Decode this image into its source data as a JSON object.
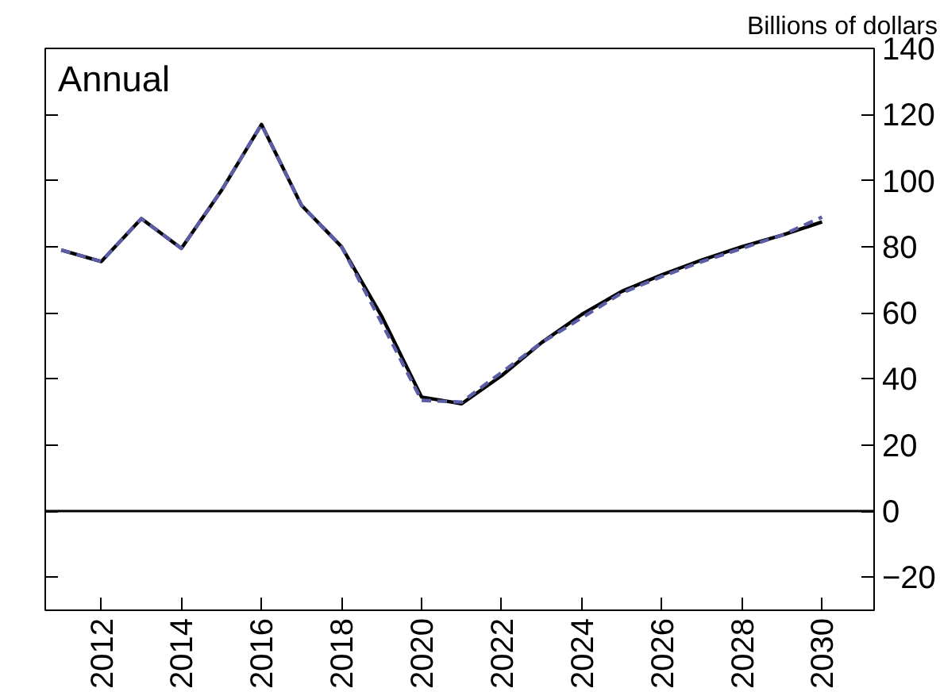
{
  "chart_data": {
    "type": "line",
    "ylabel": "Billions of dollars",
    "annotations": [
      "Annual"
    ],
    "x": [
      2011,
      2012,
      2013,
      2014,
      2015,
      2016,
      2017,
      2018,
      2019,
      2020,
      2021,
      2022,
      2023,
      2024,
      2025,
      2026,
      2027,
      2028,
      2029,
      2030
    ],
    "series": [
      {
        "color": "#000000",
        "line_style": "solid",
        "values": [
          79,
          75.5,
          88.5,
          79.5,
          97,
          117,
          92.5,
          80,
          59,
          34.5,
          32.5,
          41,
          51,
          59.5,
          66.5,
          71.5,
          76,
          80,
          83.5,
          87.5
        ]
      },
      {
        "color": "#5b5ea6",
        "line_style": "dashed",
        "values": [
          79,
          75.5,
          88.5,
          79.5,
          97,
          117,
          92.5,
          80,
          57,
          33.5,
          33,
          42,
          51,
          58.5,
          66,
          71,
          75.5,
          79.5,
          83.5,
          89
        ]
      }
    ],
    "xlim": [
      2010.6,
      2031.3
    ],
    "xticks": [
      2012,
      2014,
      2016,
      2018,
      2020,
      2022,
      2024,
      2026,
      2028,
      2030
    ],
    "ylim": [
      -30,
      140
    ],
    "yticks": [
      -20,
      0,
      20,
      40,
      60,
      80,
      100,
      120,
      140
    ],
    "ref_lines": [
      {
        "axis": "y",
        "value": 0,
        "color": "#000000"
      }
    ],
    "grid": false,
    "marker": "none"
  }
}
